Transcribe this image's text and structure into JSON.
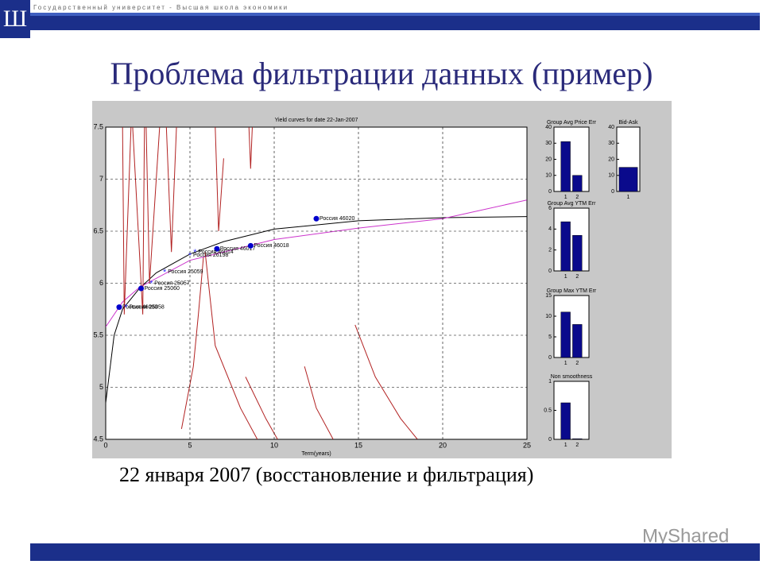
{
  "header": "Государственный университет - Высшая школа экономики",
  "title": "Проблема фильтрации данных (пример)",
  "caption": "22 января 2007 (восстановление и фильтрация)",
  "watermark": "MyShared",
  "chart_data": [
    {
      "type": "line",
      "title": "Yield curves for date 22-Jan-2007",
      "xlabel": "Term(years)",
      "xlim": [
        0,
        25
      ],
      "xticks": [
        0,
        5,
        10,
        15,
        20,
        25
      ],
      "ylim": [
        4.5,
        7.5
      ],
      "yticks": [
        4.5,
        5,
        5.5,
        6,
        6.5,
        7,
        7.5
      ],
      "grid": true,
      "series": [
        {
          "color": "#000000",
          "x": [
            0,
            0.5,
            1,
            2,
            3,
            5,
            7,
            10,
            15,
            20,
            25
          ],
          "values": [
            4.85,
            5.5,
            5.75,
            5.95,
            6.1,
            6.28,
            6.4,
            6.52,
            6.6,
            6.63,
            6.64
          ]
        },
        {
          "color": "#cc33cc",
          "x": [
            0,
            1,
            2,
            5,
            10,
            15,
            20,
            25
          ],
          "values": [
            5.58,
            5.82,
            5.96,
            6.22,
            6.42,
            6.53,
            6.62,
            6.8
          ]
        },
        {
          "color": "#b22222",
          "x": [
            1.0,
            1.1,
            1.5,
            null,
            1.6,
            2.2,
            2.3,
            null,
            2.4,
            2.6,
            3.2,
            null,
            3.6,
            3.9,
            4.2,
            null,
            6.5,
            6.7,
            7.0,
            null,
            8.5,
            8.6,
            8.7,
            null,
            5.9,
            6.5,
            8.0,
            9.0,
            null,
            8.3,
            9.5,
            10.2,
            null,
            11.8,
            12.5,
            13.5,
            null,
            14.8,
            16.0,
            17.5,
            18.5,
            null,
            5.8,
            5.5,
            5.2,
            4.5
          ],
          "values": [
            7.5,
            5.7,
            7.5,
            null,
            7.5,
            5.7,
            7.5,
            null,
            7.5,
            6.0,
            7.5,
            null,
            7.5,
            6.3,
            7.5,
            null,
            7.5,
            6.5,
            7.2,
            null,
            7.5,
            7.1,
            7.5,
            null,
            6.3,
            5.4,
            4.8,
            4.5,
            null,
            5.1,
            4.7,
            4.5,
            null,
            5.2,
            4.8,
            4.5,
            null,
            5.6,
            5.1,
            4.7,
            4.5,
            null,
            6.25,
            5.7,
            5.2,
            4.6
          ]
        },
        {
          "color": "#0000cc",
          "marker": "dot",
          "x": [
            0.8,
            2.1,
            6.6,
            8.6,
            12.5
          ],
          "values": [
            5.77,
            5.95,
            6.33,
            6.36,
            6.62
          ],
          "point_labels": [
            "Россия 46003",
            "Россия 25060",
            "Россия 46017",
            "Россия 46018",
            "Россия 46020"
          ]
        },
        {
          "color": "#3333ff",
          "marker": "star",
          "x": [
            1.2,
            2.7,
            3.5,
            5.0,
            5.3
          ],
          "values": [
            5.77,
            6.0,
            6.11,
            6.27,
            6.3
          ],
          "point_labels": [
            "Россия 25058",
            "Россия 25057",
            "Россия 25059",
            "Россия 26198",
            "Россия 46014"
          ]
        }
      ]
    },
    {
      "type": "bar",
      "title": "Group Avg Price Err",
      "categories": [
        "1",
        "2"
      ],
      "values": [
        31,
        10
      ],
      "color": "#0a0a8c",
      "ylim": [
        0,
        40
      ],
      "yticks": [
        0,
        10,
        20,
        30,
        40
      ]
    },
    {
      "type": "bar",
      "title": "Bid-Ask",
      "categories": [
        "1"
      ],
      "values": [
        15
      ],
      "color": "#0a0a8c",
      "ylim": [
        0,
        40
      ],
      "yticks": [
        0,
        10,
        20,
        30,
        40
      ]
    },
    {
      "type": "bar",
      "title": "Group Avg YTM Err",
      "categories": [
        "1",
        "2"
      ],
      "values": [
        4.7,
        3.4
      ],
      "color": "#0a0a8c",
      "ylim": [
        0,
        6
      ],
      "yticks": [
        0,
        2,
        4,
        6
      ]
    },
    {
      "type": "bar",
      "title": "Group Max YTM Err",
      "categories": [
        "1",
        "2"
      ],
      "values": [
        11,
        8
      ],
      "color": "#0a0a8c",
      "ylim": [
        0,
        15
      ],
      "yticks": [
        0,
        5,
        10,
        15
      ]
    },
    {
      "type": "bar",
      "title": "Non smoothness",
      "categories": [
        "1",
        "2"
      ],
      "values": [
        0.63,
        0.01
      ],
      "color": "#0a0a8c",
      "ylim": [
        0,
        1
      ],
      "yticks": [
        0,
        0.5,
        1
      ]
    }
  ]
}
